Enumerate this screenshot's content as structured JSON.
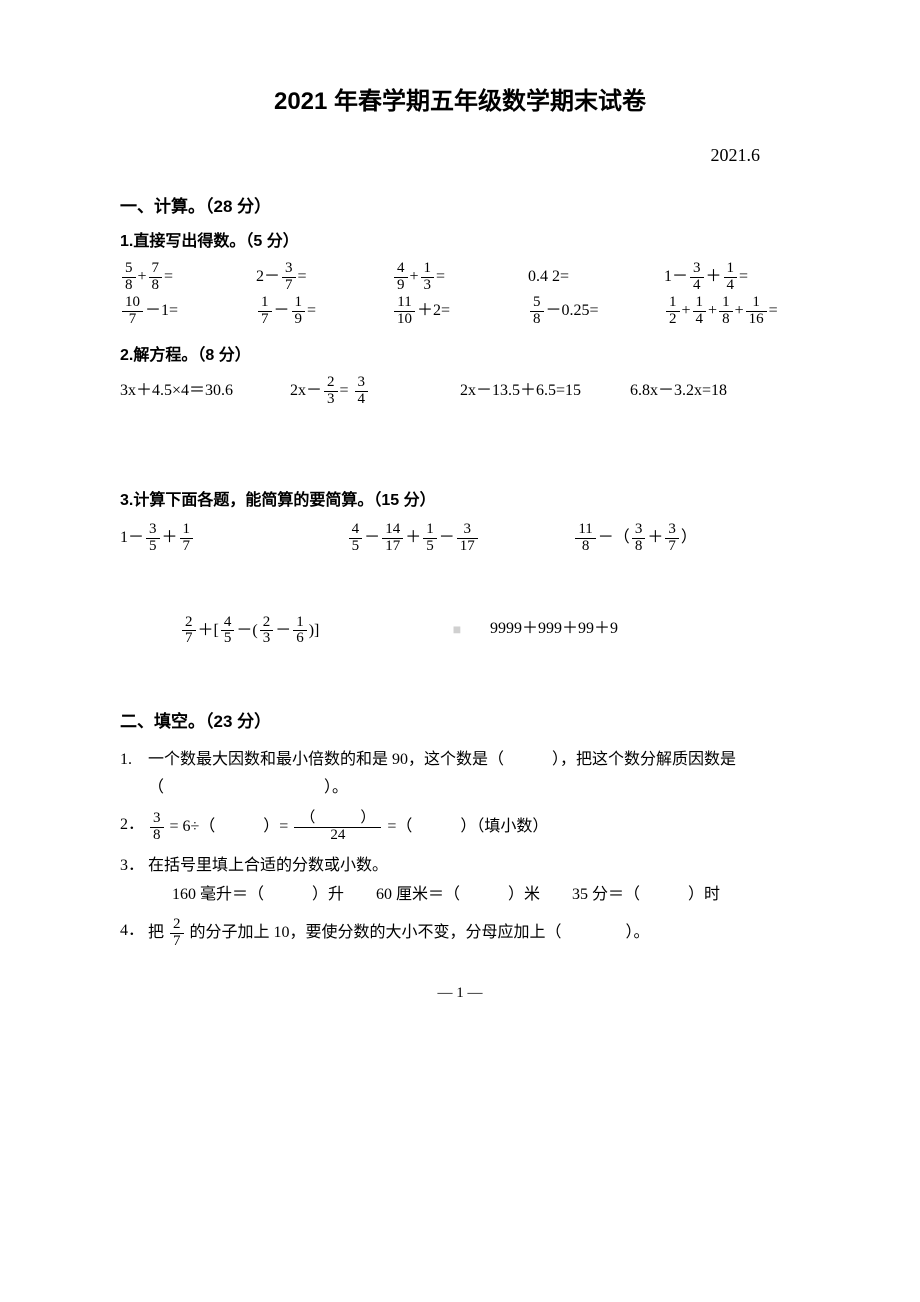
{
  "title": "2021 年春学期五年级数学期末试卷",
  "date": "2021.6",
  "section1": {
    "header": "一、计算。（28 分）",
    "q1": {
      "header": "1.直接写出得数。（5 分）",
      "row1": [
        {
          "type": "frac_plus_frac",
          "a_num": "5",
          "a_den": "8",
          "op": "+",
          "b_num": "7",
          "b_den": "8",
          "tail": "="
        },
        {
          "type": "int_minus_frac",
          "a": "2",
          "op": "－",
          "b_num": "3",
          "b_den": "7",
          "tail": "="
        },
        {
          "type": "frac_plus_frac",
          "a_num": "4",
          "a_den": "9",
          "op": "+",
          "b_num": "1",
          "b_den": "3",
          "tail": "="
        },
        {
          "type": "plain",
          "text": "0.4 2="
        },
        {
          "type": "triple",
          "lead": "1－",
          "a_num": "3",
          "a_den": "4",
          "op": "＋",
          "b_num": "1",
          "b_den": "4",
          "tail": "="
        }
      ],
      "row2": [
        {
          "type": "frac_minus_int",
          "a_num": "10",
          "a_den": "7",
          "op": "－",
          "b": "1",
          "tail": "="
        },
        {
          "type": "frac_plus_frac",
          "a_num": "1",
          "a_den": "7",
          "op": "－",
          "b_num": "1",
          "b_den": "9",
          "tail": "="
        },
        {
          "type": "frac_plus_int",
          "a_num": "11",
          "a_den": "10",
          "op": "＋",
          "b": "2",
          "tail": "="
        },
        {
          "type": "frac_minus_dec",
          "a_num": "5",
          "a_den": "8",
          "op": "－",
          "b": "0.25",
          "tail": "="
        },
        {
          "type": "four_frac",
          "f": [
            [
              "1",
              "2"
            ],
            [
              "1",
              "4"
            ],
            [
              "1",
              "8"
            ],
            [
              "1",
              "16"
            ]
          ],
          "ops": [
            "+",
            "+",
            "+"
          ],
          "tail": "="
        }
      ]
    },
    "q2": {
      "header": "2.解方程。（8 分）",
      "items": [
        {
          "type": "plain",
          "text": "3x＋4.5×4＝30.6"
        },
        {
          "type": "eq_frac",
          "lead": "2x－",
          "a_num": "2",
          "a_den": "3",
          "mid": "= ",
          "b_num": "3",
          "b_den": "4"
        },
        {
          "type": "plain",
          "text": "2x－13.5＋6.5=15"
        },
        {
          "type": "plain",
          "text": "6.8x－3.2x=18"
        }
      ]
    },
    "q3": {
      "header": "3.计算下面各题，能简算的要简算。（15 分）",
      "row1": [
        {
          "type": "triple",
          "lead": "1－",
          "a_num": "3",
          "a_den": "5",
          "op": "＋",
          "b_num": "1",
          "b_den": "7"
        },
        {
          "type": "four_op",
          "parts": [
            [
              "4",
              "5"
            ],
            [
              "14",
              "17"
            ],
            [
              "1",
              "5"
            ],
            [
              "3",
              "17"
            ]
          ],
          "ops": [
            "－",
            "＋",
            "－"
          ]
        },
        {
          "type": "paren",
          "lead_num": "11",
          "lead_den": "8",
          "mid": "－（",
          "a_num": "3",
          "a_den": "8",
          "op": "＋",
          "b_num": "3",
          "b_den": "7",
          "tail": "）"
        }
      ],
      "row2": [
        {
          "type": "bracket",
          "outer_num": "2",
          "outer_den": "7",
          "lead": "＋[",
          "a_num": "4",
          "a_den": "5",
          "mid": "－(",
          "b_num": "2",
          "b_den": "3",
          "op": "－",
          "c_num": "1",
          "c_den": "6",
          "tail": ")]"
        },
        {
          "type": "plain",
          "text": "9999＋999＋99＋9"
        }
      ]
    }
  },
  "section2": {
    "header": "二、填空。（23 分）",
    "items": [
      {
        "n": "1.",
        "text_a": "一个数最大因数和最小倍数的和是 90，这个数是（　　　），把这个数分解质因数是",
        "text_b": "（　　　　　　　　　　）。"
      },
      {
        "n": "2．",
        "type": "eq38"
      },
      {
        "n": "3．",
        "text_a": "在括号里填上合适的分数或小数。",
        "text_b": "160 毫升＝（　　　）升　　60 厘米＝（　　　）米　　35 分＝（　　　）时"
      },
      {
        "n": "4．",
        "type": "q4"
      }
    ],
    "q2": {
      "lhs_num": "3",
      "lhs_den": "8",
      "seg1": " = 6÷（　　　）= ",
      "mid_num": "（　　　）",
      "mid_den": "24",
      "seg2": " =（　　　）（填小数）"
    },
    "q4": {
      "pre": "把 ",
      "f_num": "2",
      "f_den": "7",
      "post": " 的分子加上 10，要使分数的大小不变，分母应加上（　　　　）。"
    }
  },
  "pagenum": "— 1 —",
  "watermark": "■"
}
